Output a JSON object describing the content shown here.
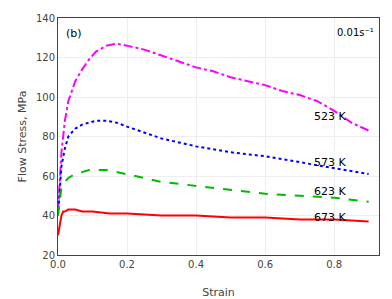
{
  "chart_data": {
    "type": "line",
    "title": "(b)",
    "x_label": "Strain",
    "y_label": "Flow Stress, MPa",
    "annotation": "0.01s⁻¹",
    "xlim": [
      0.0,
      0.93
    ],
    "ylim": [
      20,
      140
    ],
    "xticks": [
      {
        "value": 0.0,
        "label": "0.0"
      },
      0.2,
      0.4,
      0.6,
      0.8
    ],
    "yticks": [
      20,
      40,
      60,
      80,
      100,
      120,
      140
    ],
    "series": [
      {
        "name": "523 K",
        "color": "#ff00ff",
        "line_style": "dashdot",
        "x": [
          0.0,
          0.005,
          0.01,
          0.02,
          0.03,
          0.05,
          0.07,
          0.09,
          0.11,
          0.14,
          0.17,
          0.2,
          0.25,
          0.3,
          0.35,
          0.4,
          0.45,
          0.5,
          0.55,
          0.6,
          0.65,
          0.7,
          0.75,
          0.8,
          0.85,
          0.9
        ],
        "values": [
          42,
          60,
          72,
          88,
          98,
          108,
          114,
          119,
          123,
          126,
          127,
          126,
          124,
          121,
          118,
          115,
          113,
          110,
          108,
          106,
          103,
          101,
          98,
          93,
          87,
          83
        ]
      },
      {
        "name": "573 K",
        "color": "#0000ff",
        "line_style": "dotted",
        "x": [
          0.0,
          0.005,
          0.01,
          0.02,
          0.03,
          0.05,
          0.07,
          0.09,
          0.11,
          0.14,
          0.17,
          0.2,
          0.25,
          0.3,
          0.35,
          0.4,
          0.5,
          0.6,
          0.7,
          0.8,
          0.9
        ],
        "values": [
          40,
          55,
          65,
          74,
          80,
          84,
          86,
          87,
          88,
          88,
          87,
          85,
          82,
          79,
          77,
          75,
          72,
          70,
          67,
          64,
          61
        ]
      },
      {
        "name": "623 K",
        "color": "#00bb00",
        "line_style": "dashed",
        "x": [
          0.0,
          0.005,
          0.01,
          0.02,
          0.03,
          0.05,
          0.07,
          0.09,
          0.11,
          0.14,
          0.17,
          0.2,
          0.25,
          0.3,
          0.4,
          0.5,
          0.6,
          0.7,
          0.8,
          0.9
        ],
        "values": [
          40,
          48,
          54,
          57,
          59,
          61,
          62,
          63,
          63,
          63,
          62,
          61,
          59,
          57,
          55,
          53,
          51,
          50,
          49,
          47
        ]
      },
      {
        "name": "673 K",
        "color": "#ff0000",
        "line_style": "solid",
        "x": [
          0.0,
          0.005,
          0.01,
          0.015,
          0.02,
          0.03,
          0.04,
          0.05,
          0.07,
          0.1,
          0.15,
          0.2,
          0.3,
          0.4,
          0.5,
          0.6,
          0.7,
          0.8,
          0.9
        ],
        "values": [
          30,
          35,
          40,
          42,
          42,
          43,
          43,
          43,
          42,
          42,
          41,
          41,
          40,
          40,
          39,
          39,
          38,
          38,
          37
        ]
      }
    ],
    "annotations": [
      {
        "text": "523 K",
        "x": 0.735,
        "y": 90
      },
      {
        "text": "573 K",
        "x": 0.735,
        "y": 67
      },
      {
        "text": "623 K",
        "x": 0.735,
        "y": 52
      },
      {
        "text": "673 K",
        "x": 0.735,
        "y": 39
      }
    ]
  }
}
